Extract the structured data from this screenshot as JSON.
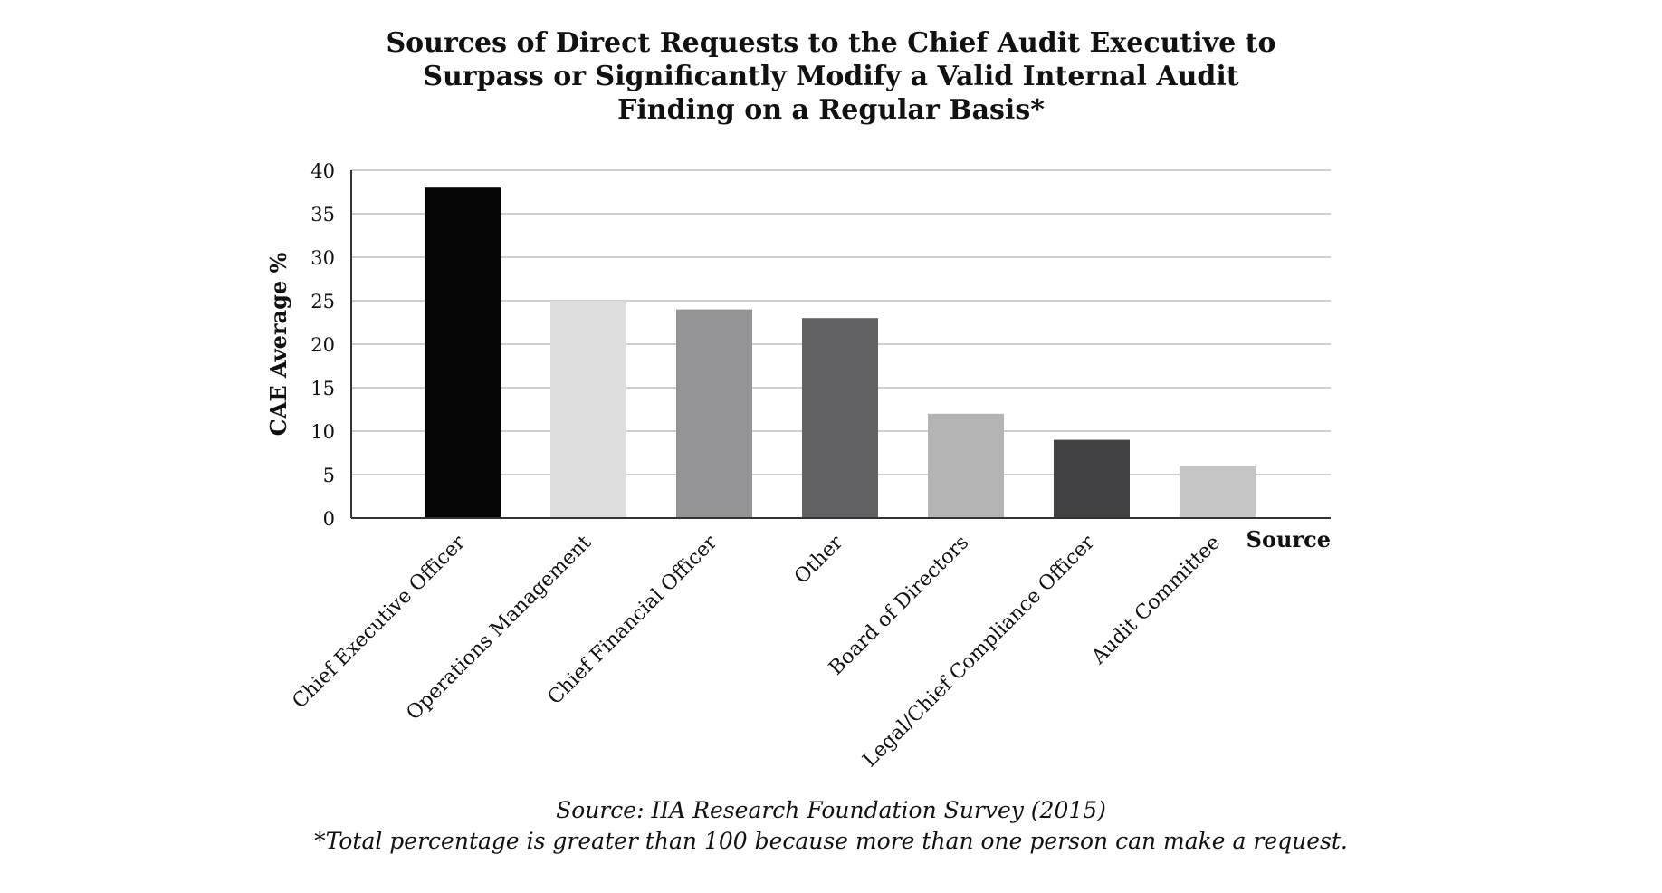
{
  "chart_data": {
    "type": "bar",
    "title": [
      "Sources of Direct Requests to the Chief Audit Executive to",
      "Surpass or Significantly Modify a Valid Internal Audit",
      "Finding on a Regular Basis*"
    ],
    "xlabel": "Source",
    "ylabel": "CAE Average %",
    "ylim": [
      0,
      40
    ],
    "yticks": [
      0,
      5,
      10,
      15,
      20,
      25,
      30,
      35,
      40
    ],
    "grid": true,
    "categories": [
      "Chief Executive Officer",
      "Operations Management",
      "Chief Financial Officer",
      "Other",
      "Board of Directors",
      "Legal/Chief Compliance Officer",
      "Audit Committee"
    ],
    "values": [
      38,
      25,
      24,
      23,
      12,
      9,
      6
    ],
    "colors": [
      "#050505",
      "#dededf",
      "#949496",
      "#626165",
      "#b4b4b5",
      "#414042",
      "#c6c6c7"
    ]
  },
  "notes": {
    "source": "Source: IIA Research Foundation Survey (2015)",
    "footnote": "*Total percentage is greater than 100 because more than one person can make a request."
  }
}
